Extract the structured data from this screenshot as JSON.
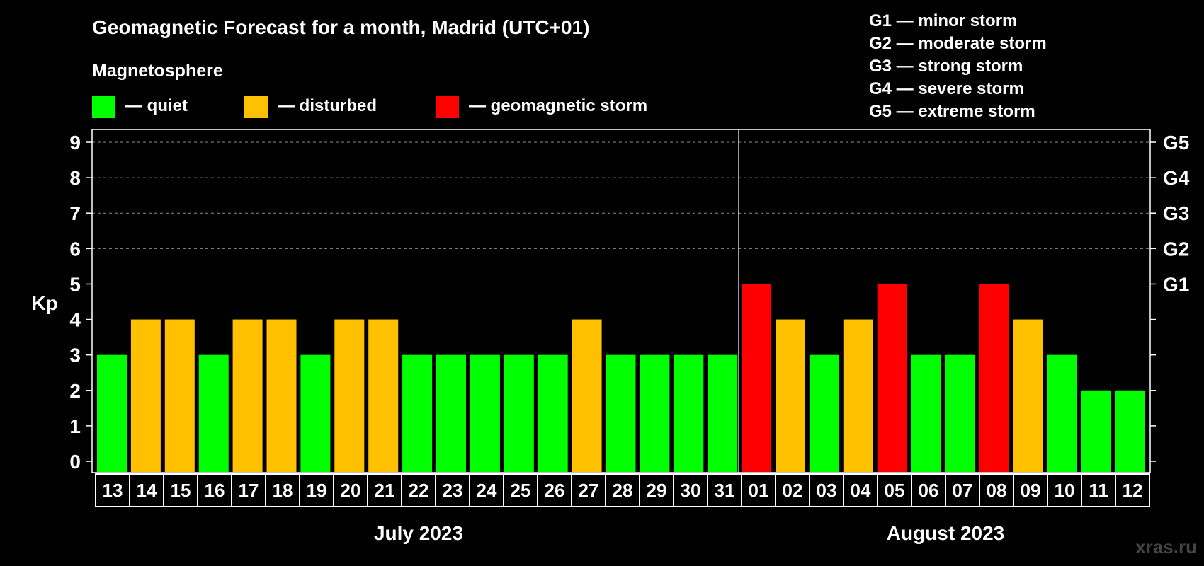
{
  "title": "Geomagnetic Forecast for a month, Madrid (UTC+01)",
  "legend": {
    "heading": "Magnetosphere",
    "items": [
      {
        "key": "quiet",
        "label": "— quiet",
        "color": "#00ff00"
      },
      {
        "key": "disturbed",
        "label": "— disturbed",
        "color": "#ffc000"
      },
      {
        "key": "storm",
        "label": "— geomagnetic storm",
        "color": "#ff0000"
      }
    ]
  },
  "storm_scale": [
    "G1 — minor storm",
    "G2 — moderate storm",
    "G3 — strong storm",
    "G4 — severe storm",
    "G5 — extreme storm"
  ],
  "watermark": "xras.ru",
  "chart_data": {
    "type": "bar",
    "ylabel": "Kp",
    "ylim": [
      0,
      9
    ],
    "y_ticks": [
      0,
      1,
      2,
      3,
      4,
      5,
      6,
      7,
      8,
      9
    ],
    "right_axis_labels": [
      {
        "kp": 5,
        "label": "G1"
      },
      {
        "kp": 6,
        "label": "G2"
      },
      {
        "kp": 7,
        "label": "G3"
      },
      {
        "kp": 8,
        "label": "G4"
      },
      {
        "kp": 9,
        "label": "G5"
      }
    ],
    "grid": "horizontal dashed at Kp 5-9",
    "categories": [
      "13",
      "14",
      "15",
      "16",
      "17",
      "18",
      "19",
      "20",
      "21",
      "22",
      "23",
      "24",
      "25",
      "26",
      "27",
      "28",
      "29",
      "30",
      "31",
      "01",
      "02",
      "03",
      "04",
      "05",
      "06",
      "07",
      "08",
      "09",
      "10",
      "11",
      "12"
    ],
    "values": [
      3,
      4,
      4,
      3,
      4,
      4,
      3,
      4,
      4,
      3,
      3,
      3,
      3,
      3,
      4,
      3,
      3,
      3,
      3,
      5,
      4,
      3,
      4,
      5,
      3,
      3,
      5,
      4,
      3,
      2,
      2
    ],
    "status": [
      "quiet",
      "disturbed",
      "disturbed",
      "quiet",
      "disturbed",
      "disturbed",
      "quiet",
      "disturbed",
      "disturbed",
      "quiet",
      "quiet",
      "quiet",
      "quiet",
      "quiet",
      "disturbed",
      "quiet",
      "quiet",
      "quiet",
      "quiet",
      "storm",
      "disturbed",
      "quiet",
      "disturbed",
      "storm",
      "quiet",
      "quiet",
      "storm",
      "disturbed",
      "quiet",
      "quiet",
      "quiet"
    ],
    "months": [
      {
        "label": "July 2023",
        "start_index": 0,
        "count": 19
      },
      {
        "label": "August 2023",
        "start_index": 19,
        "count": 12
      }
    ]
  }
}
